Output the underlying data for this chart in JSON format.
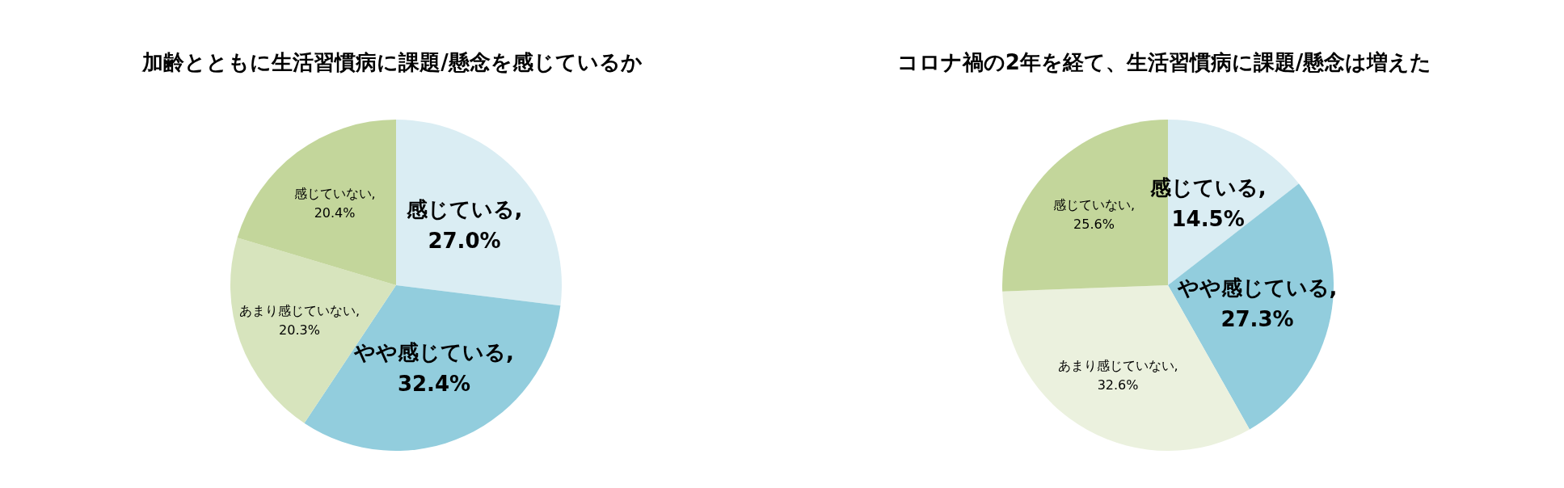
{
  "chart_data": [
    {
      "type": "pie",
      "title": "加齢とともに生活習慣病に課題/懸念を感じているか",
      "categories": [
        "感じている",
        "やや感じている",
        "あまり感じていない",
        "感じていない"
      ],
      "values": [
        27.0,
        32.4,
        20.3,
        20.4
      ],
      "colors": [
        "#daedf3",
        "#92cddd",
        "#d7e4bd",
        "#c3d69b"
      ],
      "value_labels": [
        ", 27.0%",
        ", 32.4%",
        ", 20.3%",
        ", 20.4%"
      ],
      "legend": false
    },
    {
      "type": "pie",
      "title": "コロナ禍の2年を経て、生活習慣病に課題/懸念は増えた",
      "categories": [
        "感じている",
        "やや感じている",
        "あまり感じていない",
        "感じていない"
      ],
      "values": [
        14.5,
        27.3,
        32.6,
        25.6
      ],
      "colors": [
        "#daedf3",
        "#92cddd",
        "#ebf1de",
        "#c3d69b"
      ],
      "value_labels": [
        ", 14.5%",
        ", 27.3%",
        ", 32.6%",
        ", 25.6%"
      ],
      "legend": false
    }
  ]
}
